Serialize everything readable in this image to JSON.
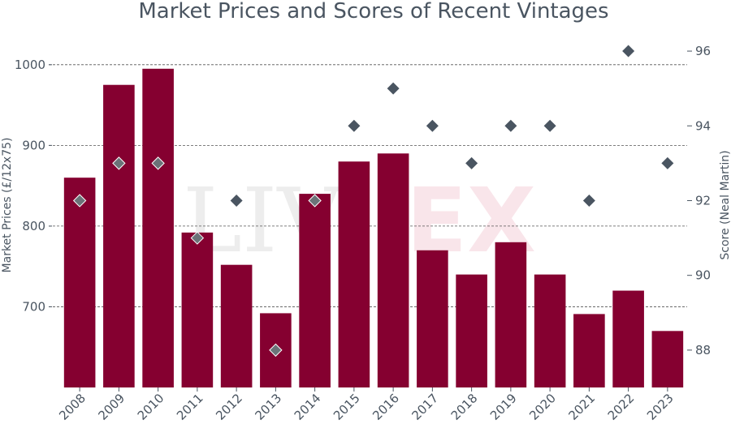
{
  "chart_data": {
    "type": "bar",
    "title": "Market Prices and Scores of Recent Vintages",
    "categories": [
      "2008",
      "2009",
      "2010",
      "2011",
      "2012",
      "2013",
      "2014",
      "2015",
      "2016",
      "2017",
      "2018",
      "2019",
      "2020",
      "2021",
      "2022",
      "2023"
    ],
    "series": [
      {
        "type": "bar",
        "axis": "left",
        "values": [
          860,
          975,
          995,
          792,
          752,
          692,
          840,
          880,
          890,
          770,
          740,
          780,
          740,
          691,
          720,
          670
        ],
        "color": "#850030"
      },
      {
        "type": "scatter",
        "axis": "right",
        "values": [
          92,
          93,
          93,
          91,
          92,
          88,
          92,
          94,
          95,
          94,
          93,
          94,
          94,
          92,
          96,
          93
        ],
        "color": "#4a5561",
        "highlight_color": "#6b7378"
      }
    ],
    "ylabel": "Market Prices (£/12x75)",
    "y2label": "Score (Neal Martin)",
    "ylim": [
      600,
      1040
    ],
    "y2lim": [
      87,
      96.5
    ],
    "yticks": [
      "700",
      "800",
      "900",
      "1000"
    ],
    "y2ticks": [
      "88",
      "90",
      "92",
      "94",
      "96"
    ],
    "grid": true,
    "watermark": {
      "part1": "LIV",
      "part2": "EX"
    }
  }
}
